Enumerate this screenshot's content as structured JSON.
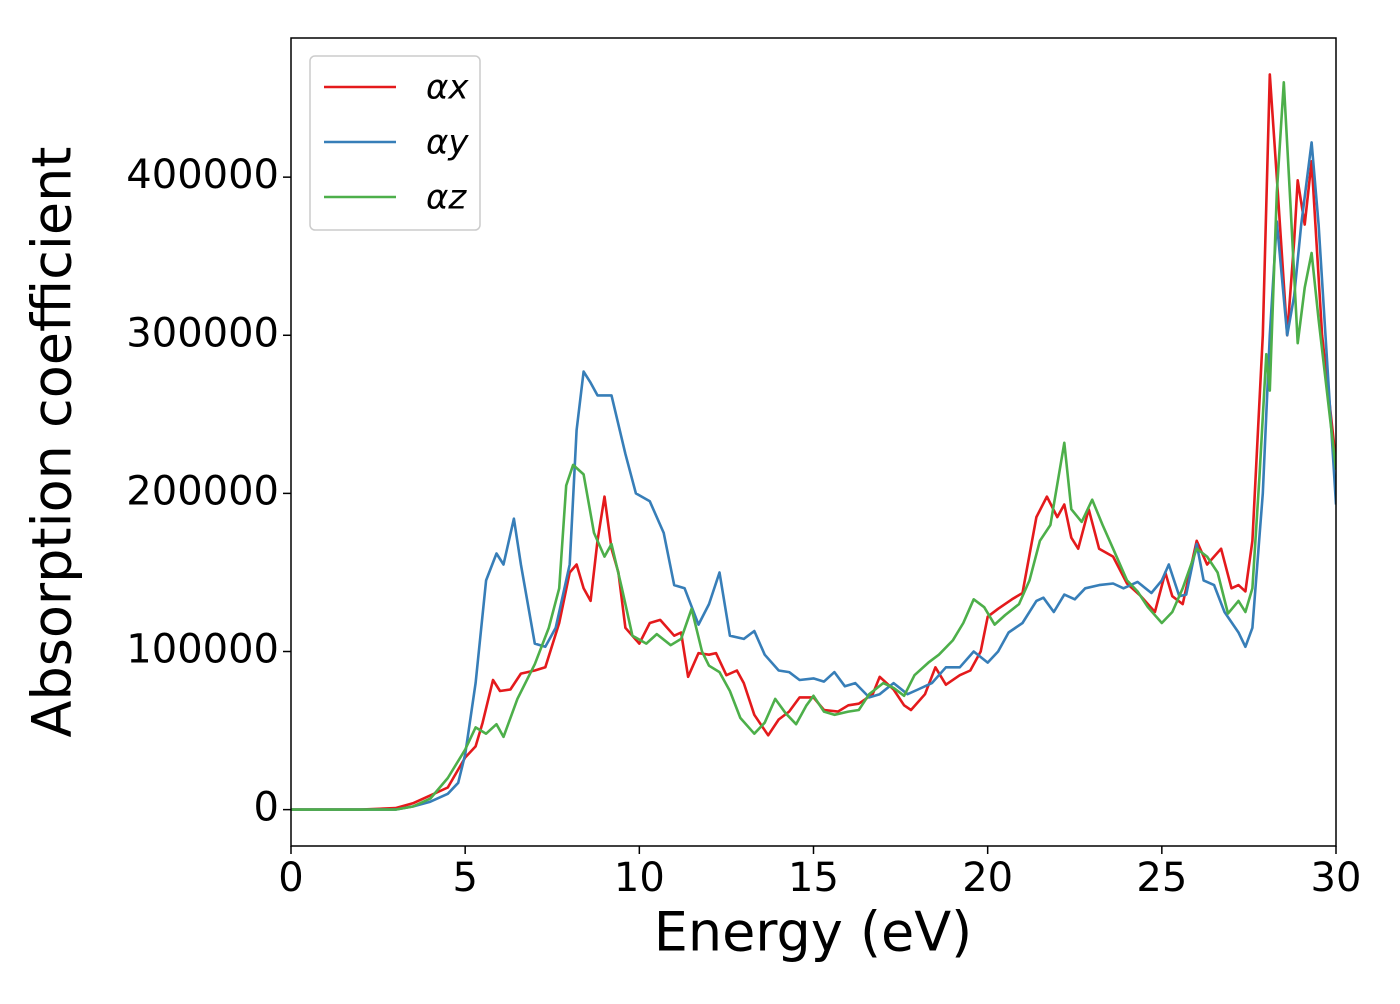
{
  "chart_data": {
    "type": "line",
    "xlabel": "Energy (eV)",
    "ylabel": "Absorption coefficient",
    "xlim": [
      0,
      30
    ],
    "ylim": [
      -23000,
      488000
    ],
    "xticks": [
      0,
      5,
      10,
      15,
      20,
      25,
      30
    ],
    "yticks": [
      0,
      100000,
      200000,
      300000,
      400000
    ],
    "legend": "upper left",
    "series": [
      {
        "name": "αx",
        "color": "#e41a1c",
        "x": [
          0,
          1,
          2,
          3,
          3.5,
          4,
          4.5,
          5,
          5.3,
          5.5,
          5.8,
          6,
          6.3,
          6.6,
          7,
          7.3,
          7.7,
          8,
          8.2,
          8.4,
          8.6,
          8.8,
          9,
          9.2,
          9.4,
          9.6,
          10,
          10.3,
          10.6,
          11,
          11.2,
          11.4,
          11.7,
          12,
          12.2,
          12.5,
          12.8,
          13,
          13.3,
          13.7,
          14,
          14.3,
          14.6,
          15,
          15.3,
          15.7,
          16,
          16.3,
          16.7,
          16.9,
          17.3,
          17.6,
          17.8,
          18.2,
          18.5,
          18.8,
          19.2,
          19.5,
          19.8,
          20,
          20.3,
          20.7,
          21,
          21.4,
          21.7,
          22,
          22.2,
          22.4,
          22.6,
          22.9,
          23.2,
          23.6,
          24,
          24.4,
          24.8,
          25.1,
          25.3,
          25.6,
          26,
          26.3,
          26.7,
          27,
          27.2,
          27.4,
          27.6,
          27.9,
          28.1,
          28.3,
          28.6,
          28.8,
          28.9,
          29.1,
          29.3,
          29.6,
          30
        ],
        "values": [
          0,
          0,
          0,
          1000,
          4000,
          9000,
          14000,
          33000,
          40000,
          55000,
          82000,
          75000,
          76000,
          86000,
          88000,
          90000,
          118000,
          150000,
          155000,
          140000,
          132000,
          170000,
          198000,
          165000,
          150000,
          115000,
          105000,
          118000,
          120000,
          110000,
          112000,
          84000,
          99000,
          98000,
          99000,
          85000,
          88000,
          80000,
          60000,
          47000,
          57000,
          62000,
          71000,
          71000,
          63000,
          62000,
          66000,
          67000,
          73000,
          84000,
          76000,
          66000,
          63000,
          73000,
          90000,
          79000,
          85000,
          88000,
          100000,
          122000,
          127000,
          133000,
          137000,
          185000,
          198000,
          185000,
          193000,
          172000,
          165000,
          190000,
          165000,
          160000,
          143000,
          135000,
          125000,
          150000,
          135000,
          130000,
          170000,
          155000,
          165000,
          140000,
          142000,
          138000,
          170000,
          300000,
          465000,
          400000,
          300000,
          360000,
          398000,
          370000,
          410000,
          300000,
          220000
        ]
      },
      {
        "name": "αy",
        "color": "#377eb8",
        "x": [
          0,
          3,
          3.5,
          4,
          4.5,
          4.8,
          5,
          5.3,
          5.6,
          5.9,
          6.1,
          6.4,
          6.6,
          7,
          7.3,
          7.6,
          8,
          8.2,
          8.4,
          8.6,
          8.8,
          9.2,
          9.6,
          9.9,
          10.3,
          10.7,
          11,
          11.3,
          11.7,
          12,
          12.3,
          12.6,
          13,
          13.3,
          13.6,
          14,
          14.3,
          14.6,
          15,
          15.3,
          15.6,
          15.9,
          16.2,
          16.6,
          16.9,
          17.3,
          17.7,
          18,
          18.4,
          18.8,
          19.2,
          19.6,
          20,
          20.3,
          20.6,
          21,
          21.4,
          21.6,
          21.9,
          22.2,
          22.5,
          22.8,
          23.2,
          23.6,
          23.9,
          24.3,
          24.7,
          25,
          25.2,
          25.5,
          25.7,
          26,
          26.2,
          26.5,
          26.8,
          27.2,
          27.4,
          27.6,
          27.9,
          28.1,
          28.3,
          28.6,
          28.8,
          29,
          29.3,
          29.5,
          30
        ],
        "values": [
          0,
          0,
          2000,
          5000,
          10000,
          17000,
          35000,
          80000,
          145000,
          162000,
          155000,
          184000,
          155000,
          105000,
          103000,
          115000,
          155000,
          240000,
          277000,
          270000,
          262000,
          262000,
          225000,
          200000,
          195000,
          175000,
          142000,
          140000,
          117000,
          130000,
          150000,
          110000,
          108000,
          113000,
          98000,
          88000,
          87000,
          82000,
          83000,
          81000,
          87000,
          78000,
          80000,
          71000,
          73000,
          80000,
          73000,
          76000,
          80000,
          90000,
          90000,
          100000,
          93000,
          100000,
          112000,
          118000,
          132000,
          134000,
          125000,
          136000,
          133000,
          140000,
          142000,
          143000,
          140000,
          144000,
          137000,
          145000,
          155000,
          135000,
          136000,
          168000,
          145000,
          142000,
          125000,
          112000,
          103000,
          115000,
          200000,
          300000,
          372000,
          300000,
          325000,
          370000,
          422000,
          370000,
          193000
        ]
      },
      {
        "name": "αz",
        "color": "#4daf4a",
        "x": [
          0,
          3,
          3.5,
          4,
          4.5,
          5,
          5.3,
          5.6,
          5.9,
          6.1,
          6.5,
          7,
          7.4,
          7.7,
          7.9,
          8.1,
          8.4,
          8.7,
          9,
          9.2,
          9.5,
          9.8,
          10.2,
          10.5,
          10.9,
          11.2,
          11.5,
          11.8,
          12,
          12.3,
          12.6,
          12.9,
          13.3,
          13.6,
          13.9,
          14.2,
          14.5,
          14.8,
          15,
          15.3,
          15.6,
          16,
          16.3,
          16.6,
          17,
          17.3,
          17.6,
          17.9,
          18.3,
          18.6,
          19,
          19.3,
          19.6,
          19.9,
          20.2,
          20.5,
          20.9,
          21.2,
          21.5,
          21.8,
          22.2,
          22.4,
          22.7,
          23,
          23.3,
          23.6,
          24,
          24.3,
          24.6,
          25,
          25.3,
          25.6,
          26,
          26.3,
          26.6,
          26.9,
          27.2,
          27.4,
          27.6,
          27.8,
          28,
          28.1,
          28.3,
          28.5,
          28.7,
          28.9,
          29.1,
          29.3,
          29.5,
          30
        ],
        "values": [
          0,
          0,
          2000,
          7000,
          20000,
          38000,
          52000,
          48000,
          54000,
          46000,
          70000,
          92000,
          115000,
          140000,
          205000,
          218000,
          212000,
          175000,
          160000,
          168000,
          140000,
          110000,
          105000,
          111000,
          104000,
          108000,
          127000,
          100000,
          91000,
          87000,
          75000,
          58000,
          48000,
          55000,
          70000,
          61000,
          54000,
          66000,
          72000,
          62000,
          60000,
          62000,
          63000,
          73000,
          80000,
          77000,
          72000,
          85000,
          93000,
          98000,
          107000,
          118000,
          133000,
          128000,
          117000,
          123000,
          130000,
          145000,
          170000,
          180000,
          232000,
          190000,
          182000,
          196000,
          180000,
          165000,
          145000,
          138000,
          128000,
          118000,
          125000,
          140000,
          165000,
          160000,
          150000,
          124000,
          132000,
          125000,
          140000,
          210000,
          288000,
          265000,
          390000,
          460000,
          380000,
          295000,
          330000,
          352000,
          310000,
          215000
        ]
      }
    ]
  }
}
